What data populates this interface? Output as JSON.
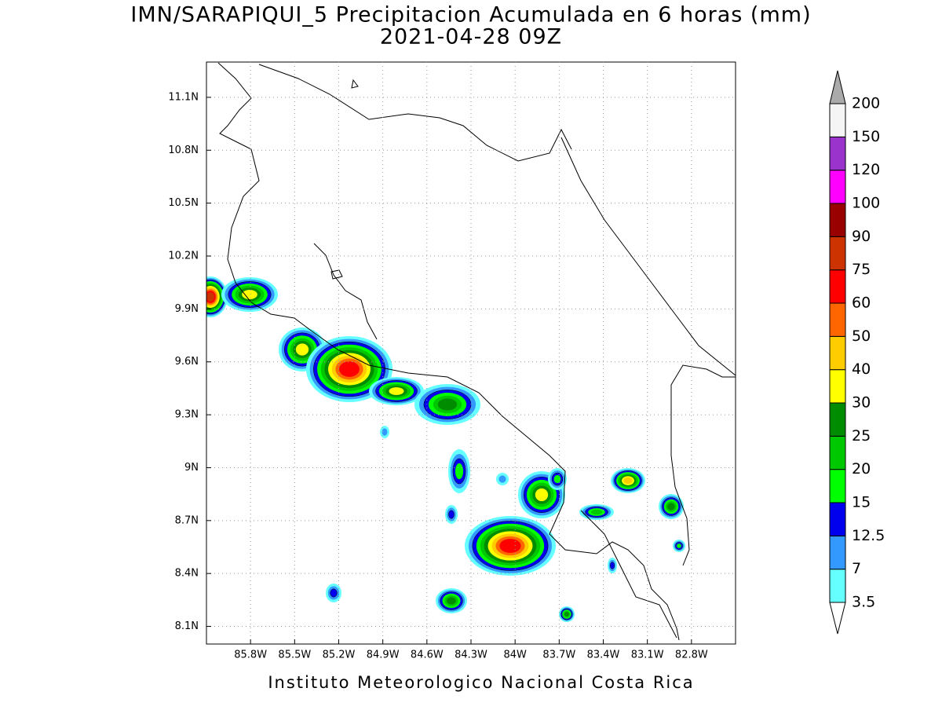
{
  "title": [
    "IMN/SARAPIQUI_5 Precipitacion Acumulada en 6 horas (mm)",
    "2021-04-28 09Z"
  ],
  "map": {
    "xlim": [
      -86.1,
      -82.5
    ],
    "ylim": [
      8.0,
      11.3
    ],
    "xticks": [
      {
        "value": -85.8,
        "label": "85.8W"
      },
      {
        "value": -85.5,
        "label": "85.5W"
      },
      {
        "value": -85.2,
        "label": "85.2W"
      },
      {
        "value": -84.9,
        "label": "84.9W"
      },
      {
        "value": -84.6,
        "label": "84.6W"
      },
      {
        "value": -84.3,
        "label": "84.3W"
      },
      {
        "value": -84.0,
        "label": "84W"
      },
      {
        "value": -83.7,
        "label": "83.7W"
      },
      {
        "value": -83.4,
        "label": "83.4W"
      },
      {
        "value": -83.1,
        "label": "83.1W"
      },
      {
        "value": -82.8,
        "label": "82.8W"
      }
    ],
    "yticks": [
      {
        "value": 8.1,
        "label": "8.1N"
      },
      {
        "value": 8.4,
        "label": "8.4N"
      },
      {
        "value": 8.7,
        "label": "8.7N"
      },
      {
        "value": 9.0,
        "label": "9N"
      },
      {
        "value": 9.3,
        "label": "9.3N"
      },
      {
        "value": 9.6,
        "label": "9.6N"
      },
      {
        "value": 9.9,
        "label": "9.9N"
      },
      {
        "value": 10.2,
        "label": "10.2N"
      },
      {
        "value": 10.5,
        "label": "10.5N"
      },
      {
        "value": 10.8,
        "label": "10.8N"
      },
      {
        "value": 11.1,
        "label": "11.1N"
      }
    ],
    "grid": true
  },
  "colorbar": {
    "levels": [
      3.5,
      7,
      12.5,
      15,
      20,
      25,
      30,
      40,
      50,
      60,
      75,
      90,
      100,
      120,
      150,
      200
    ],
    "colors": [
      "#66ffff",
      "#3399ff",
      "#0000ee",
      "#00ff00",
      "#00c800",
      "#008c00",
      "#ffff00",
      "#ffcc00",
      "#ff6600",
      "#ff0000",
      "#cc3300",
      "#990000",
      "#ff00ff",
      "#9933cc",
      "#f5f5f5"
    ],
    "under_color": "#ffffff",
    "over_color": "#aaaaaa"
  },
  "footer": "Instituto Meteorologico Nacional Costa Rica"
}
